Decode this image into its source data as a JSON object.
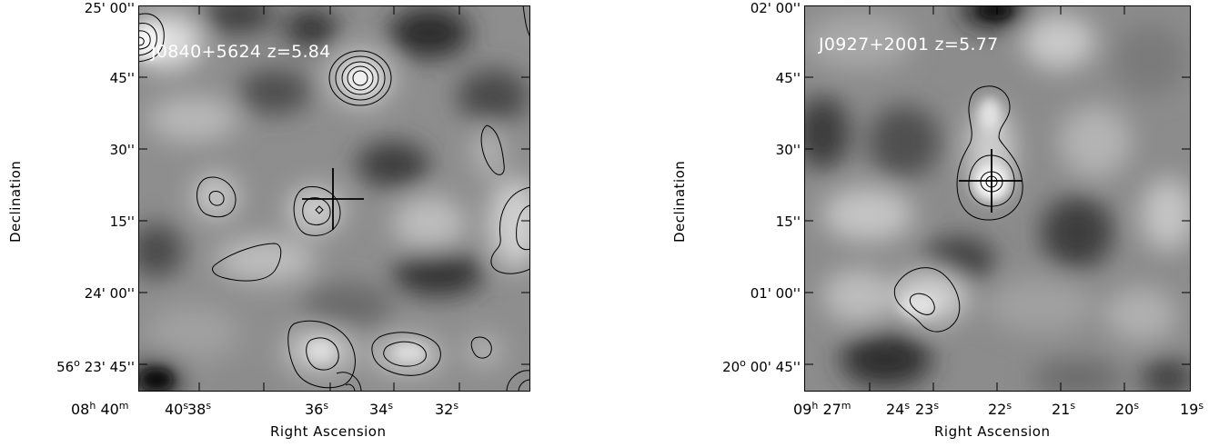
{
  "panels": {
    "left": {
      "label": "J0840+5624  z=5.84",
      "y_ticks": [
        "25' 00''",
        "45''",
        "30''",
        "15''",
        "24' 00''",
        "23' 45''"
      ],
      "y_major_prefix": "56",
      "y_major_deg": "o",
      "x_ticks": {
        "h": "08",
        "h_unit": "h",
        "m": "40",
        "m_unit": "m",
        "s_values": [
          "40",
          "38",
          "36",
          "34",
          "32"
        ],
        "s_unit": "s"
      },
      "xlabel": "Right Ascension",
      "ylabel": "Declination"
    },
    "right": {
      "label": "J0927+2001  z=5.77",
      "y_ticks": [
        "02' 00''",
        "45''",
        "30''",
        "15''",
        "01' 00''",
        "00' 45''"
      ],
      "y_major_prefix": "20",
      "y_major_deg": "o",
      "x_ticks": {
        "h": "09",
        "h_unit": "h",
        "m": "27",
        "m_unit": "m",
        "s_values": [
          "24",
          "23",
          "22",
          "21",
          "20",
          "19"
        ],
        "s_unit": "s"
      },
      "xlabel": "Right Ascension",
      "ylabel": "Declination"
    }
  },
  "colors": {
    "background": "#ffffff",
    "contour": "#000000",
    "label": "#ffffff"
  }
}
